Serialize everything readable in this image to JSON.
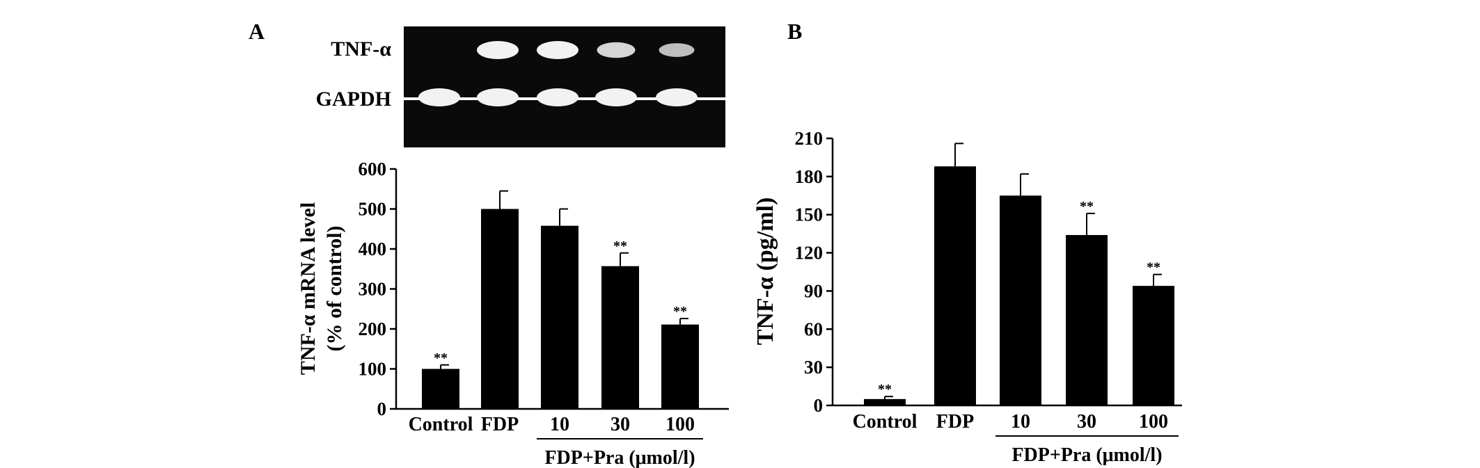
{
  "panels": {
    "a": {
      "label": "A"
    },
    "b": {
      "label": "B"
    }
  },
  "gel": {
    "rows": [
      {
        "label": "TNF-α",
        "band_intensity": [
          0,
          1.0,
          1.0,
          0.75,
          0.55
        ]
      },
      {
        "label": "GAPDH",
        "band_intensity": [
          1,
          1,
          1,
          1,
          1
        ]
      }
    ]
  },
  "chart_data": [
    {
      "type": "bar",
      "panel": "A",
      "categories": [
        "Control",
        "FDP",
        "10",
        "30",
        "100"
      ],
      "values": [
        100,
        500,
        458,
        357,
        211
      ],
      "errors": [
        10,
        45,
        42,
        33,
        15
      ],
      "significance": [
        "**",
        "",
        "",
        "**",
        "**"
      ],
      "ylabel_line1": "TNF-α mRNA level",
      "ylabel_line2": "(% of control)",
      "xlabel": "",
      "ylim": [
        0,
        600
      ],
      "yticks": [
        0,
        100,
        200,
        300,
        400,
        500,
        600
      ],
      "group_label": "FDP+Pra (μmol/l)",
      "group_categories": [
        "10",
        "30",
        "100"
      ],
      "grid": false
    },
    {
      "type": "bar",
      "panel": "B",
      "categories": [
        "Control",
        "FDP",
        "10",
        "30",
        "100"
      ],
      "values": [
        5,
        188,
        165,
        134,
        94
      ],
      "errors": [
        2,
        18,
        17,
        17,
        9
      ],
      "significance": [
        "**",
        "",
        "",
        "**",
        "**"
      ],
      "ylabel": "TNF-α (pg/ml)",
      "xlabel": "",
      "ylim": [
        0,
        210
      ],
      "yticks": [
        0,
        30,
        60,
        90,
        120,
        150,
        180,
        210
      ],
      "group_label": "FDP+Pra (μmol/l)",
      "group_categories": [
        "10",
        "30",
        "100"
      ],
      "grid": false
    }
  ],
  "colors": {
    "bar": "#000000",
    "gel_background": "#0a0a0a",
    "band": "#f2f2f2"
  }
}
